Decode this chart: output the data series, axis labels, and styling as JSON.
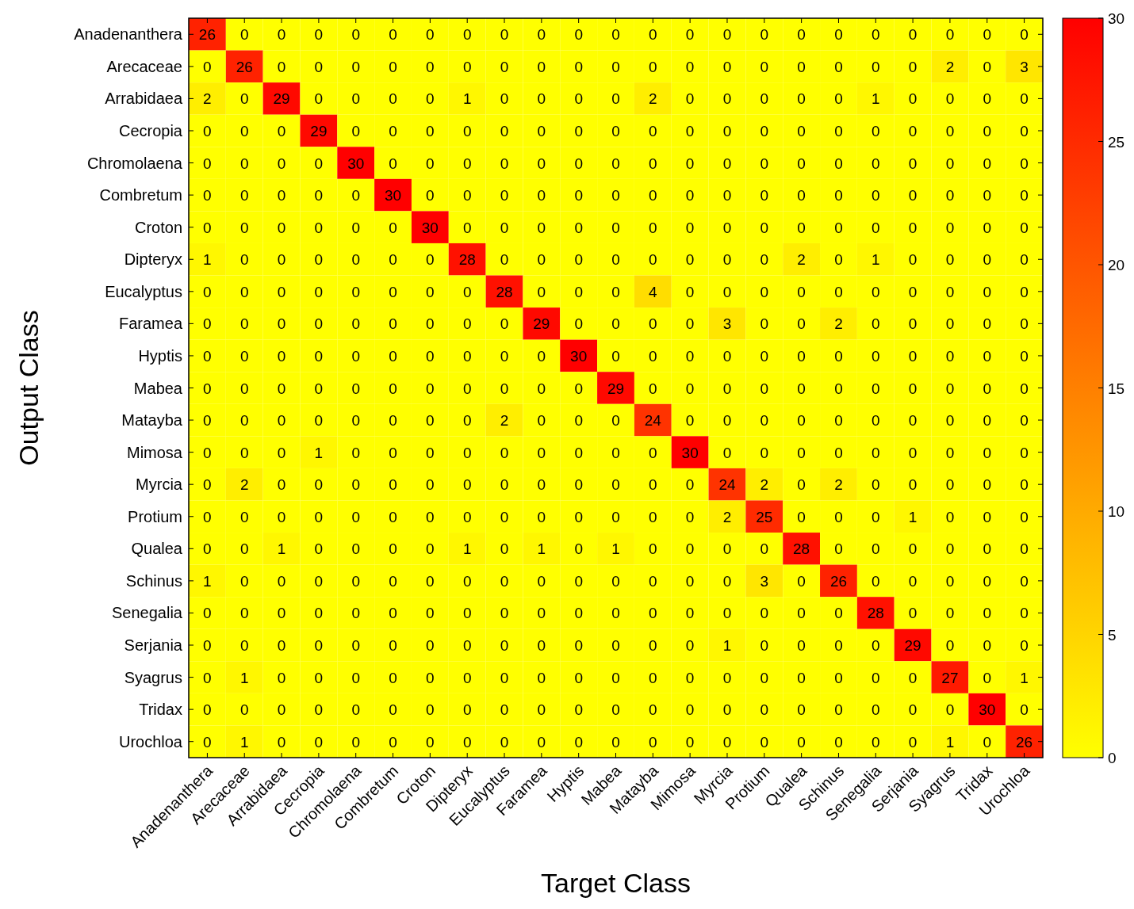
{
  "chart_data": {
    "type": "heatmap",
    "xlabel": "Target Class",
    "ylabel": "Output Class",
    "categories": [
      "Anadenanthera",
      "Arecaceae",
      "Arrabidaea",
      "Cecropia",
      "Chromolaena",
      "Combretum",
      "Croton",
      "Dipteryx",
      "Eucalyptus",
      "Faramea",
      "Hyptis",
      "Mabea",
      "Matayba",
      "Mimosa",
      "Myrcia",
      "Protium",
      "Qualea",
      "Schinus",
      "Senegalia",
      "Serjania",
      "Syagrus",
      "Tridax",
      "Urochloa"
    ],
    "y_categories": [
      "Anadenanthera",
      "Arecaceae",
      "Arrabidaea",
      "Cecropia",
      "Chromolaena",
      "Combretum",
      "Croton",
      "Dipteryx",
      "Eucalyptus",
      "Faramea",
      "Hyptis",
      "Mabea",
      "Matayba",
      "Mimosa",
      "Myrcia",
      "Protium",
      "Qualea",
      "Schinus",
      "Senegalia",
      "Serjania",
      "Syagrus",
      "Tridax",
      "Urochloa"
    ],
    "cells": [
      [
        26,
        0,
        0,
        0,
        0,
        0,
        0,
        0,
        0,
        0,
        0,
        0,
        0,
        0,
        0,
        0,
        0,
        0,
        0,
        0,
        0,
        0,
        0
      ],
      [
        0,
        26,
        0,
        0,
        0,
        0,
        0,
        0,
        0,
        0,
        0,
        0,
        0,
        0,
        0,
        0,
        0,
        0,
        0,
        0,
        2,
        0,
        3
      ],
      [
        2,
        0,
        29,
        0,
        0,
        0,
        0,
        1,
        0,
        0,
        0,
        0,
        2,
        0,
        0,
        0,
        0,
        0,
        1,
        0,
        0,
        0,
        0
      ],
      [
        0,
        0,
        0,
        29,
        0,
        0,
        0,
        0,
        0,
        0,
        0,
        0,
        0,
        0,
        0,
        0,
        0,
        0,
        0,
        0,
        0,
        0,
        0
      ],
      [
        0,
        0,
        0,
        0,
        30,
        0,
        0,
        0,
        0,
        0,
        0,
        0,
        0,
        0,
        0,
        0,
        0,
        0,
        0,
        0,
        0,
        0,
        0
      ],
      [
        0,
        0,
        0,
        0,
        0,
        30,
        0,
        0,
        0,
        0,
        0,
        0,
        0,
        0,
        0,
        0,
        0,
        0,
        0,
        0,
        0,
        0,
        0
      ],
      [
        0,
        0,
        0,
        0,
        0,
        0,
        30,
        0,
        0,
        0,
        0,
        0,
        0,
        0,
        0,
        0,
        0,
        0,
        0,
        0,
        0,
        0,
        0
      ],
      [
        1,
        0,
        0,
        0,
        0,
        0,
        0,
        28,
        0,
        0,
        0,
        0,
        0,
        0,
        0,
        0,
        2,
        0,
        1,
        0,
        0,
        0,
        0
      ],
      [
        0,
        0,
        0,
        0,
        0,
        0,
        0,
        0,
        28,
        0,
        0,
        0,
        4,
        0,
        0,
        0,
        0,
        0,
        0,
        0,
        0,
        0,
        0
      ],
      [
        0,
        0,
        0,
        0,
        0,
        0,
        0,
        0,
        0,
        29,
        0,
        0,
        0,
        0,
        3,
        0,
        0,
        2,
        0,
        0,
        0,
        0,
        0
      ],
      [
        0,
        0,
        0,
        0,
        0,
        0,
        0,
        0,
        0,
        0,
        30,
        0,
        0,
        0,
        0,
        0,
        0,
        0,
        0,
        0,
        0,
        0,
        0
      ],
      [
        0,
        0,
        0,
        0,
        0,
        0,
        0,
        0,
        0,
        0,
        0,
        29,
        0,
        0,
        0,
        0,
        0,
        0,
        0,
        0,
        0,
        0,
        0
      ],
      [
        0,
        0,
        0,
        0,
        0,
        0,
        0,
        0,
        2,
        0,
        0,
        0,
        24,
        0,
        0,
        0,
        0,
        0,
        0,
        0,
        0,
        0,
        0
      ],
      [
        0,
        0,
        0,
        1,
        0,
        0,
        0,
        0,
        0,
        0,
        0,
        0,
        0,
        30,
        0,
        0,
        0,
        0,
        0,
        0,
        0,
        0,
        0
      ],
      [
        0,
        2,
        0,
        0,
        0,
        0,
        0,
        0,
        0,
        0,
        0,
        0,
        0,
        0,
        24,
        2,
        0,
        2,
        0,
        0,
        0,
        0,
        0
      ],
      [
        0,
        0,
        0,
        0,
        0,
        0,
        0,
        0,
        0,
        0,
        0,
        0,
        0,
        0,
        2,
        25,
        0,
        0,
        0,
        1,
        0,
        0,
        0
      ],
      [
        0,
        0,
        1,
        0,
        0,
        0,
        0,
        1,
        0,
        1,
        0,
        1,
        0,
        0,
        0,
        0,
        28,
        0,
        0,
        0,
        0,
        0,
        0
      ],
      [
        1,
        0,
        0,
        0,
        0,
        0,
        0,
        0,
        0,
        0,
        0,
        0,
        0,
        0,
        0,
        3,
        0,
        26,
        0,
        0,
        0,
        0,
        0
      ],
      [
        0,
        0,
        0,
        0,
        0,
        0,
        0,
        0,
        0,
        0,
        0,
        0,
        0,
        0,
        0,
        0,
        0,
        0,
        28,
        0,
        0,
        0,
        0
      ],
      [
        0,
        0,
        0,
        0,
        0,
        0,
        0,
        0,
        0,
        0,
        0,
        0,
        0,
        0,
        1,
        0,
        0,
        0,
        0,
        29,
        0,
        0,
        0
      ],
      [
        0,
        1,
        0,
        0,
        0,
        0,
        0,
        0,
        0,
        0,
        0,
        0,
        0,
        0,
        0,
        0,
        0,
        0,
        0,
        0,
        27,
        0,
        1
      ],
      [
        0,
        0,
        0,
        0,
        0,
        0,
        0,
        0,
        0,
        0,
        0,
        0,
        0,
        0,
        0,
        0,
        0,
        0,
        0,
        0,
        0,
        30,
        0
      ],
      [
        0,
        1,
        0,
        0,
        0,
        0,
        0,
        0,
        0,
        0,
        0,
        0,
        0,
        0,
        0,
        0,
        0,
        0,
        0,
        0,
        1,
        0,
        26
      ]
    ],
    "colors": [
      "#ffff00",
      "#ff0000"
    ],
    "clim": [
      0,
      30
    ],
    "cticks": [
      0,
      5,
      10,
      15,
      20,
      25,
      30
    ],
    "data_labels": true
  }
}
